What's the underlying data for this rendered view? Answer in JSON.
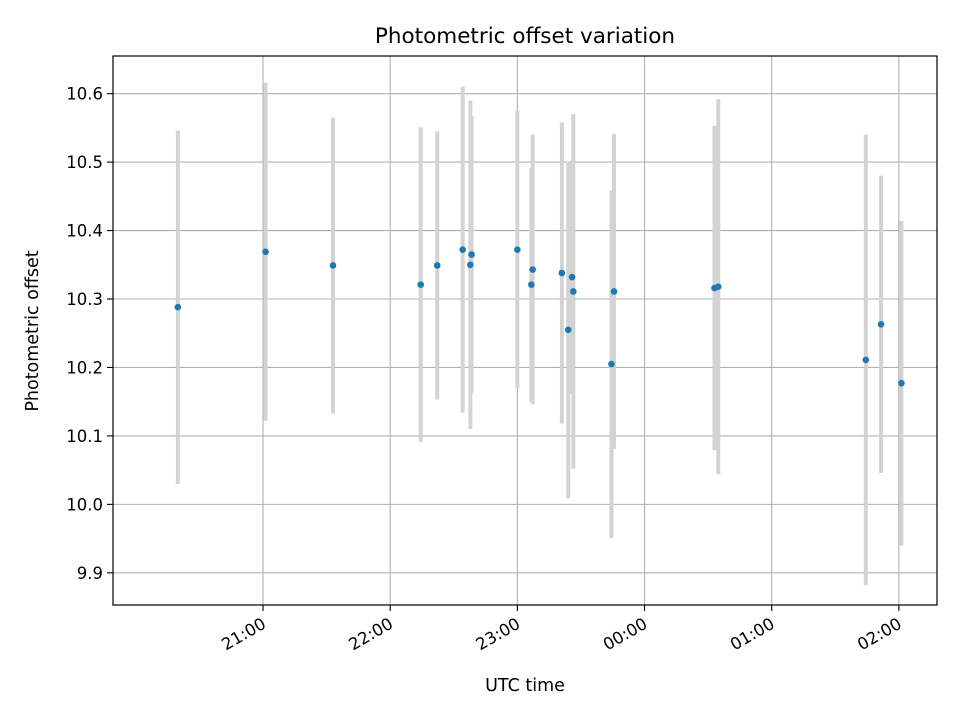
{
  "chart_data": {
    "type": "scatter",
    "title": "Photometric offset variation",
    "xlabel": "UTC time",
    "ylabel": "Photometric offset",
    "x_unit": "hours after 20:00 UTC",
    "xlim": [
      -0.18,
      6.3
    ],
    "ylim": [
      9.853,
      10.655
    ],
    "x_ticks": [
      {
        "value": 1,
        "label": "21:00"
      },
      {
        "value": 2,
        "label": "22:00"
      },
      {
        "value": 3,
        "label": "23:00"
      },
      {
        "value": 4,
        "label": "00:00"
      },
      {
        "value": 5,
        "label": "01:00"
      },
      {
        "value": 6,
        "label": "02:00"
      }
    ],
    "y_ticks": [
      {
        "value": 9.9,
        "label": "9.9"
      },
      {
        "value": 10.0,
        "label": "10.0"
      },
      {
        "value": 10.1,
        "label": "10.1"
      },
      {
        "value": 10.2,
        "label": "10.2"
      },
      {
        "value": 10.3,
        "label": "10.3"
      },
      {
        "value": 10.4,
        "label": "10.4"
      },
      {
        "value": 10.5,
        "label": "10.5"
      },
      {
        "value": 10.6,
        "label": "10.6"
      }
    ],
    "grid": true,
    "colors": {
      "points": "#1f77b4",
      "errorbars": "#d3d3d3",
      "grid": "#b0b0b0"
    },
    "points": [
      {
        "x": 0.33,
        "y": 10.288,
        "err": 0.258
      },
      {
        "x": 1.02,
        "y": 10.369,
        "err": 0.247
      },
      {
        "x": 1.55,
        "y": 10.349,
        "err": 0.216
      },
      {
        "x": 2.24,
        "y": 10.321,
        "err": 0.23
      },
      {
        "x": 2.37,
        "y": 10.349,
        "err": 0.196
      },
      {
        "x": 2.57,
        "y": 10.372,
        "err": 0.238
      },
      {
        "x": 2.63,
        "y": 10.35,
        "err": 0.24
      },
      {
        "x": 2.64,
        "y": 10.365,
        "err": 0.202
      },
      {
        "x": 3.0,
        "y": 10.372,
        "err": 0.203
      },
      {
        "x": 3.11,
        "y": 10.321,
        "err": 0.171
      },
      {
        "x": 3.12,
        "y": 10.343,
        "err": 0.197
      },
      {
        "x": 3.35,
        "y": 10.338,
        "err": 0.22
      },
      {
        "x": 3.4,
        "y": 10.255,
        "err": 0.246
      },
      {
        "x": 3.43,
        "y": 10.332,
        "err": 0.17
      },
      {
        "x": 3.44,
        "y": 10.311,
        "err": 0.259
      },
      {
        "x": 3.74,
        "y": 10.205,
        "err": 0.254
      },
      {
        "x": 3.76,
        "y": 10.311,
        "err": 0.23
      },
      {
        "x": 4.55,
        "y": 10.316,
        "err": 0.237
      },
      {
        "x": 4.58,
        "y": 10.318,
        "err": 0.274
      },
      {
        "x": 5.74,
        "y": 10.211,
        "err": 0.329
      },
      {
        "x": 5.86,
        "y": 10.263,
        "err": 0.217
      },
      {
        "x": 6.02,
        "y": 10.177,
        "err": 0.237
      }
    ]
  }
}
